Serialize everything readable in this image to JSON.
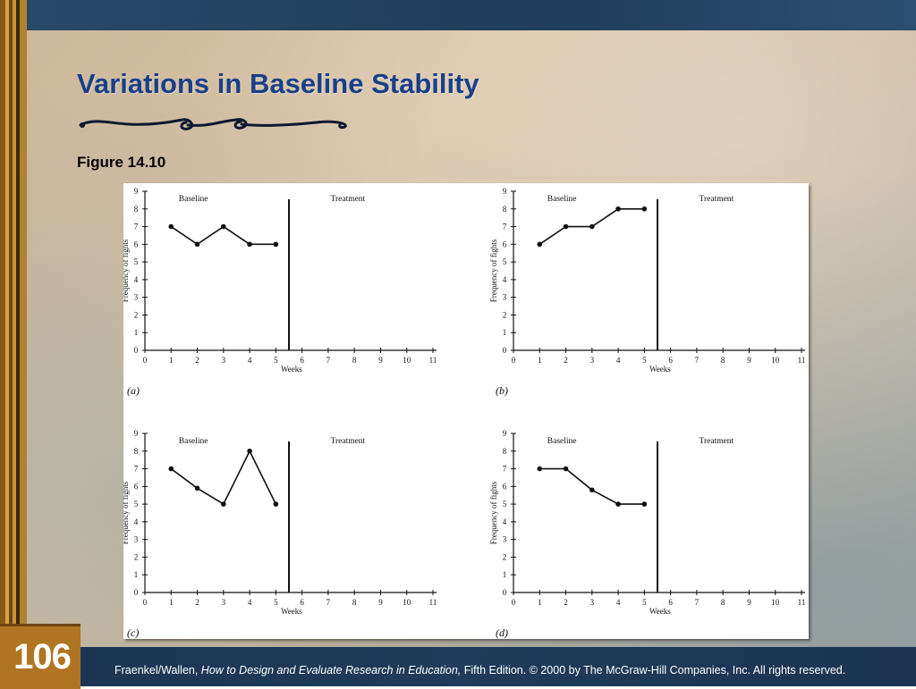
{
  "slide": {
    "title": "Variations in Baseline Stability",
    "figure_label": "Figure 14.10",
    "page_number": "106",
    "footer": {
      "authors": "Fraenkel/Wallen, ",
      "book": "How to Design and Evaluate Research in Education,",
      "rest": " Fifth Edition. © 2000 by The McGraw-Hill Companies, Inc. All rights reserved."
    }
  },
  "chart_data": [
    {
      "type": "line",
      "panel": "(a)",
      "xlabel": "Weeks",
      "ylabel": "Frequency of fights",
      "xlim": [
        0,
        11
      ],
      "ylim": [
        0,
        9
      ],
      "phase_divider_x": 5.5,
      "phases": [
        "Baseline",
        "Treatment"
      ],
      "x": [
        1,
        2,
        3,
        4,
        5
      ],
      "values": [
        7,
        6,
        7,
        6,
        6
      ]
    },
    {
      "type": "line",
      "panel": "(b)",
      "xlabel": "Weeks",
      "ylabel": "Frequency of fights",
      "xlim": [
        0,
        11
      ],
      "ylim": [
        0,
        9
      ],
      "phase_divider_x": 5.5,
      "phases": [
        "Baseline",
        "Treatment"
      ],
      "x": [
        1,
        2,
        3,
        4,
        5
      ],
      "values": [
        6,
        7,
        7,
        8,
        8
      ]
    },
    {
      "type": "line",
      "panel": "(c)",
      "xlabel": "Weeks",
      "ylabel": "Frequency of fights",
      "xlim": [
        0,
        11
      ],
      "ylim": [
        0,
        9
      ],
      "phase_divider_x": 5.5,
      "phases": [
        "Baseline",
        "Treatment"
      ],
      "x": [
        1,
        2,
        3,
        4,
        5
      ],
      "values": [
        7,
        5.9,
        5,
        8,
        5
      ]
    },
    {
      "type": "line",
      "panel": "(d)",
      "xlabel": "Weeks",
      "ylabel": "Frequency of fights",
      "xlim": [
        0,
        11
      ],
      "ylim": [
        0,
        9
      ],
      "phase_divider_x": 5.5,
      "phases": [
        "Baseline",
        "Treatment"
      ],
      "x": [
        1,
        2,
        3,
        4,
        5
      ],
      "values": [
        7,
        7,
        5.8,
        5,
        5
      ]
    }
  ]
}
